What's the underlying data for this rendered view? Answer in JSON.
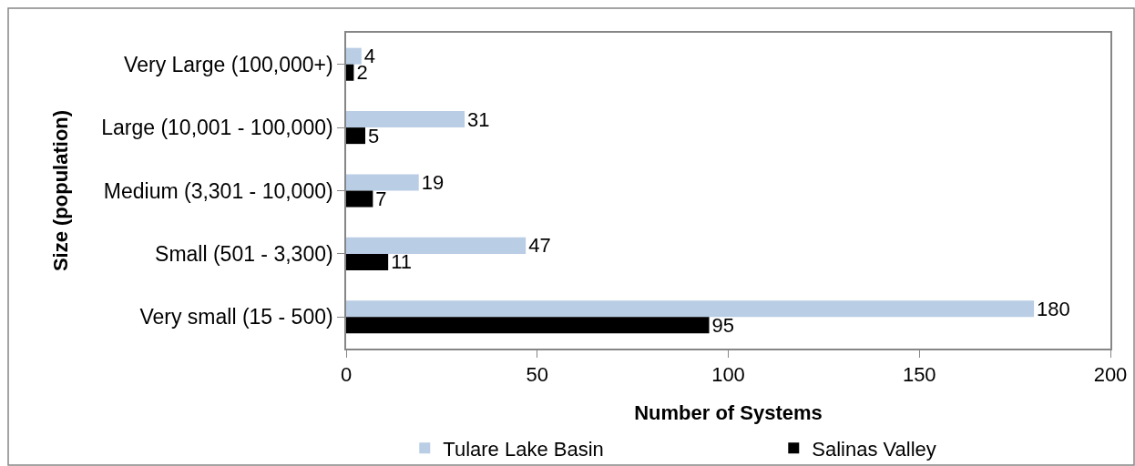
{
  "chart_data": {
    "type": "bar",
    "orientation": "horizontal",
    "xlabel": "Number of Systems",
    "ylabel": "Size (population)",
    "categories": [
      "Very Large (100,000+)",
      "Large (10,001 - 100,000)",
      "Medium (3,301 - 10,000)",
      "Small (501 - 3,300)",
      "Very small (15 - 500)"
    ],
    "series": [
      {
        "name": "Tulare Lake Basin",
        "color": "#b9cde5",
        "values": [
          4,
          31,
          19,
          47,
          180
        ]
      },
      {
        "name": "Salinas Valley",
        "color": "#000000",
        "values": [
          2,
          5,
          7,
          11,
          95
        ]
      }
    ],
    "xlim": [
      0,
      200
    ],
    "xticks": [
      0,
      50,
      100,
      150,
      200
    ],
    "grid": false,
    "legend": "bottom",
    "data_labels": true
  }
}
